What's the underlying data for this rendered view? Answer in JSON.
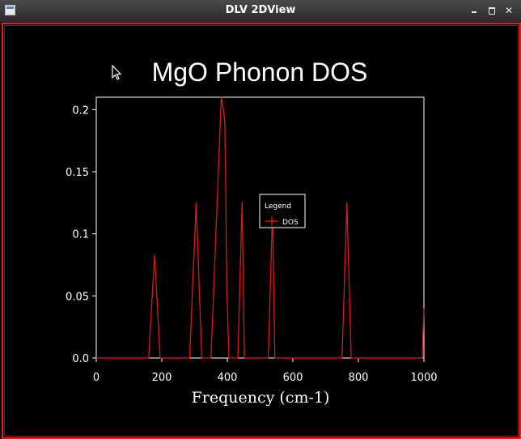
{
  "window": {
    "title": "DLV 2DView",
    "minimize_icon": "minimize-icon",
    "maximize_icon": "maximize-icon",
    "close_label": "✕"
  },
  "chart_data": {
    "type": "line",
    "title": "MgO Phonon DOS",
    "xlabel": "Frequency (cm-1)",
    "ylabel": "",
    "xlim": [
      0,
      1000
    ],
    "ylim": [
      0,
      0.21
    ],
    "x_ticks": [
      0,
      200,
      400,
      600,
      800,
      1000
    ],
    "x_tick_labels": [
      "0",
      "200",
      "400",
      "600",
      "800",
      "1000"
    ],
    "y_ticks": [
      0,
      0.05,
      0.1,
      0.15,
      0.2
    ],
    "y_tick_labels": [
      "0.0",
      "0.05",
      "0.1",
      "0.15",
      "0.2"
    ],
    "grid": false,
    "legend": {
      "title": "Legend",
      "placement": "center"
    },
    "series": [
      {
        "name": "DOS",
        "color": "#e01818",
        "x": [
          0,
          160,
          178,
          195,
          200,
          285,
          305,
          322,
          350,
          380,
          382,
          385,
          388,
          392,
          395,
          398,
          405,
          432,
          445,
          452,
          465,
          525,
          538,
          545,
          560,
          750,
          765,
          778,
          792,
          995,
          1000
        ],
        "y": [
          0,
          0,
          0.083,
          0,
          0,
          0,
          0.125,
          0,
          0,
          0.2,
          0.21,
          0.205,
          0.2,
          0.19,
          0.14,
          0.06,
          0,
          0,
          0.125,
          0,
          0,
          0,
          0.12,
          0,
          0,
          0,
          0.125,
          0,
          0,
          0,
          0.04
        ]
      }
    ]
  }
}
